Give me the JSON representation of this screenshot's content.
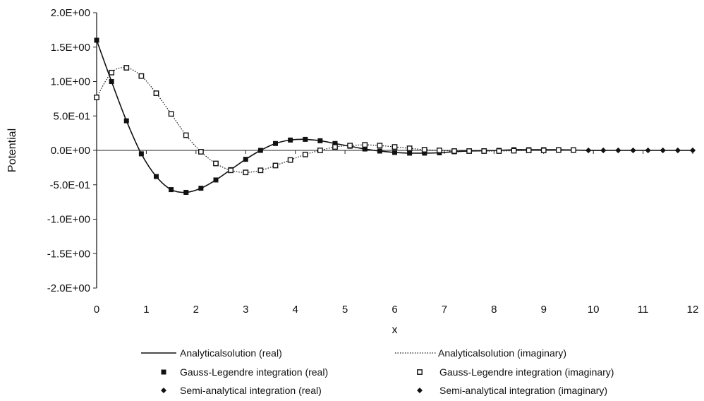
{
  "chart_data": {
    "type": "line",
    "title": "",
    "xlabel": "x",
    "ylabel": "Potential",
    "xlim": [
      0,
      12
    ],
    "ylim": [
      -2.0,
      2.0
    ],
    "x_ticks": [
      "0",
      "1",
      "2",
      "3",
      "4",
      "5",
      "6",
      "7",
      "8",
      "9",
      "10",
      "11",
      "12"
    ],
    "y_ticks": [
      "2.0E+00",
      "1.5E+00",
      "1.0E+00",
      "5.0E-01",
      "0.0E+00",
      "-5.0E-01",
      "-1.0E+00",
      "-1.5E+00",
      "-2.0E+00"
    ],
    "grid": false,
    "legend_position": "bottom",
    "series": [
      {
        "name": "Analyticalsolution (real)",
        "style": "line-solid",
        "x": [
          0,
          0.3,
          0.6,
          0.9,
          1.2,
          1.5,
          1.8,
          2.1,
          2.4,
          2.7,
          3.0,
          3.3,
          3.6,
          3.9,
          4.2,
          4.5,
          4.8,
          5.1,
          5.4,
          5.7,
          6.0,
          6.3,
          6.6,
          6.9,
          7.2,
          7.5,
          7.8,
          8.1,
          8.4,
          8.7,
          9.0,
          9.3,
          9.6,
          9.9,
          10.2,
          10.5,
          10.8,
          11.1,
          11.4,
          11.7,
          12.0
        ],
        "values": [
          1.6,
          1.0,
          0.43,
          -0.05,
          -0.38,
          -0.57,
          -0.61,
          -0.55,
          -0.43,
          -0.28,
          -0.13,
          0.0,
          0.1,
          0.15,
          0.16,
          0.14,
          0.1,
          0.06,
          0.02,
          -0.01,
          -0.03,
          -0.04,
          -0.04,
          -0.035,
          -0.02,
          -0.01,
          -0.005,
          0.0,
          0.01,
          0.01,
          0.01,
          0.01,
          0.005,
          0.0,
          0.0,
          0.0,
          0.0,
          0.0,
          0.0,
          0.0,
          0.0
        ]
      },
      {
        "name": "Analyticalsolution (imaginary)",
        "style": "line-dotted",
        "x": [
          0,
          0.3,
          0.6,
          0.9,
          1.2,
          1.5,
          1.8,
          2.1,
          2.4,
          2.7,
          3.0,
          3.3,
          3.6,
          3.9,
          4.2,
          4.5,
          4.8,
          5.1,
          5.4,
          5.7,
          6.0,
          6.3,
          6.6,
          6.9,
          7.2,
          7.5,
          7.8,
          8.1,
          8.4,
          8.7,
          9.0,
          9.3,
          9.6,
          9.9,
          10.2,
          10.5,
          10.8,
          11.1,
          11.4,
          11.7,
          12.0
        ],
        "values": [
          0.77,
          1.13,
          1.2,
          1.08,
          0.83,
          0.53,
          0.22,
          -0.02,
          -0.19,
          -0.29,
          -0.32,
          -0.29,
          -0.22,
          -0.14,
          -0.06,
          0.0,
          0.05,
          0.07,
          0.08,
          0.07,
          0.05,
          0.03,
          0.01,
          0.0,
          -0.01,
          -0.01,
          -0.01,
          -0.01,
          -0.005,
          0.0,
          0.0,
          0.005,
          0.005,
          0.0,
          0.0,
          0.0,
          0.0,
          0.0,
          0.0,
          0.0,
          0.0
        ]
      },
      {
        "name": "Gauss-Legendre integration (real)",
        "style": "marker-filled-square",
        "x": [
          0,
          0.3,
          0.6,
          0.9,
          1.2,
          1.5,
          1.8,
          2.1,
          2.4,
          2.7,
          3.0,
          3.3,
          3.6,
          3.9,
          4.2,
          4.5,
          4.8,
          5.1,
          5.4,
          5.7,
          6.0,
          6.3,
          6.6,
          6.9,
          7.2,
          7.5,
          7.8,
          8.1,
          8.4,
          8.7,
          9.0,
          9.3,
          9.6
        ],
        "values": [
          1.6,
          1.0,
          0.43,
          -0.05,
          -0.38,
          -0.57,
          -0.61,
          -0.55,
          -0.43,
          -0.28,
          -0.13,
          0.0,
          0.1,
          0.15,
          0.16,
          0.14,
          0.1,
          0.06,
          0.02,
          -0.01,
          -0.03,
          -0.04,
          -0.04,
          -0.035,
          -0.02,
          -0.01,
          -0.005,
          0.0,
          0.01,
          0.01,
          0.01,
          0.01,
          0.005
        ]
      },
      {
        "name": "Gauss-Legendre integration (imaginary)",
        "style": "marker-open-square",
        "x": [
          0,
          0.3,
          0.6,
          0.9,
          1.2,
          1.5,
          1.8,
          2.1,
          2.4,
          2.7,
          3.0,
          3.3,
          3.6,
          3.9,
          4.2,
          4.5,
          4.8,
          5.1,
          5.4,
          5.7,
          6.0,
          6.3,
          6.6,
          6.9,
          7.2,
          7.5,
          7.8,
          8.1,
          8.4,
          8.7,
          9.0,
          9.3,
          9.6
        ],
        "values": [
          0.77,
          1.13,
          1.2,
          1.08,
          0.83,
          0.53,
          0.22,
          -0.02,
          -0.19,
          -0.29,
          -0.32,
          -0.29,
          -0.22,
          -0.14,
          -0.06,
          0.0,
          0.05,
          0.07,
          0.08,
          0.07,
          0.05,
          0.03,
          0.01,
          0.0,
          -0.01,
          -0.01,
          -0.01,
          -0.01,
          -0.005,
          0.0,
          0.0,
          0.005,
          0.005
        ]
      },
      {
        "name": "Semi-analytical integration (real)",
        "style": "marker-diamond",
        "x": [
          9.9,
          10.2,
          10.5,
          10.8,
          11.1,
          11.4,
          11.7,
          12.0
        ],
        "values": [
          0.0,
          0.0,
          0.0,
          0.0,
          0.0,
          0.0,
          0.0,
          0.0
        ]
      },
      {
        "name": "Semi-analytical integration (imaginary)",
        "style": "marker-diamond",
        "x": [
          9.9,
          10.2,
          10.5,
          10.8,
          11.1,
          11.4,
          11.7,
          12.0
        ],
        "values": [
          0.0,
          0.0,
          0.0,
          0.0,
          0.0,
          0.0,
          0.0,
          0.0
        ]
      }
    ]
  }
}
